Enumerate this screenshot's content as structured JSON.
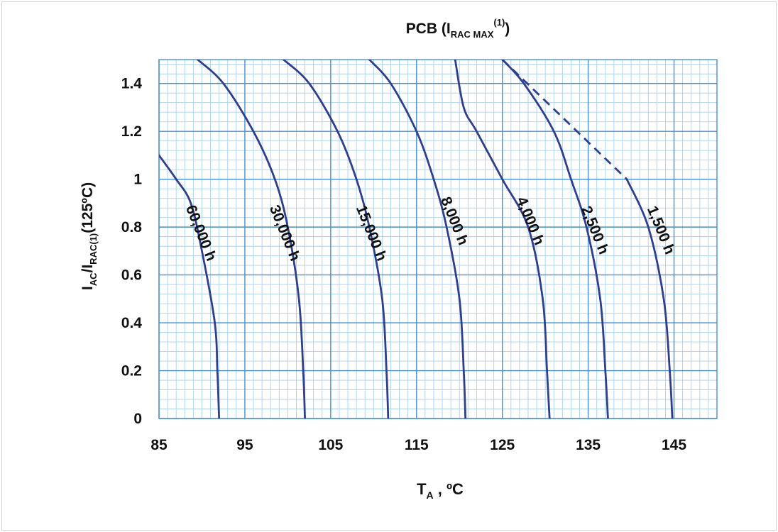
{
  "chart_data": {
    "type": "line",
    "title": {
      "main": "PCB (I",
      "sub": "RAC MAX",
      "sup": "(1)",
      "close": ")"
    },
    "xlabel": {
      "main": "T",
      "sub": "A",
      "rest": " , ºC"
    },
    "ylabel": {
      "p1": "I",
      "s1": "AC",
      "p2": "/I",
      "s2": "RAC(1)",
      "p3": "(125ºC)"
    },
    "xlim": [
      85,
      150
    ],
    "ylim": [
      0,
      1.5
    ],
    "x_ticks": [
      85,
      95,
      105,
      115,
      125,
      135,
      145
    ],
    "x_tick_labels": [
      "85",
      "95",
      "105",
      "115",
      "125",
      "135",
      "145"
    ],
    "y_ticks": [
      0,
      0.2,
      0.4,
      0.6,
      0.8,
      1,
      1.2,
      1.4
    ],
    "y_tick_labels": [
      "0",
      "0.2",
      "0.4",
      "0.6",
      "0.8",
      "1",
      "1.2",
      "1.4"
    ],
    "grid": "major and minor",
    "colors": {
      "curve": "#2e3f92",
      "grid_major": "#4a90d4",
      "grid_minor": "#a9d1f0"
    },
    "series": [
      {
        "label": "60,000 h",
        "points": [
          [
            92.0,
            0
          ],
          [
            91.8,
            0.2
          ],
          [
            91.5,
            0.4
          ],
          [
            90.0,
            0.7
          ],
          [
            88.7,
            0.9
          ],
          [
            87.0,
            1.0
          ],
          [
            85.0,
            1.1
          ]
        ]
      },
      {
        "label": "30,000 h",
        "points": [
          [
            102.0,
            0
          ],
          [
            101.8,
            0.2
          ],
          [
            101.3,
            0.5
          ],
          [
            100.0,
            0.8
          ],
          [
            98.5,
            1.0
          ],
          [
            96.0,
            1.2
          ],
          [
            92.5,
            1.4
          ],
          [
            89.5,
            1.5
          ]
        ]
      },
      {
        "label": "15,000 h",
        "points": [
          [
            111.7,
            0
          ],
          [
            111.5,
            0.2
          ],
          [
            111.0,
            0.5
          ],
          [
            109.5,
            0.8
          ],
          [
            108.0,
            1.0
          ],
          [
            105.8,
            1.2
          ],
          [
            102.5,
            1.4
          ],
          [
            99.5,
            1.5
          ]
        ]
      },
      {
        "label": "8,000 h",
        "points": [
          [
            120.7,
            0
          ],
          [
            120.5,
            0.2
          ],
          [
            120.0,
            0.5
          ],
          [
            118.5,
            0.8
          ],
          [
            117.0,
            1.0
          ],
          [
            115.0,
            1.2
          ],
          [
            112.0,
            1.4
          ],
          [
            109.5,
            1.5
          ]
        ]
      },
      {
        "label": "4,000 h",
        "points": [
          [
            130.5,
            0
          ],
          [
            130.2,
            0.2
          ],
          [
            129.7,
            0.5
          ],
          [
            128.0,
            0.8
          ],
          [
            125.0,
            1.0
          ],
          [
            122.0,
            1.2
          ],
          [
            120.5,
            1.3
          ],
          [
            119.5,
            1.5
          ]
        ]
      },
      {
        "label": "2,500 h",
        "points": [
          [
            137.3,
            0
          ],
          [
            137.0,
            0.2
          ],
          [
            136.4,
            0.5
          ],
          [
            134.8,
            0.8
          ],
          [
            133.0,
            1.0
          ],
          [
            131.0,
            1.2
          ],
          [
            127.5,
            1.4
          ],
          [
            125.0,
            1.5
          ]
        ]
      },
      {
        "label": "1,500 h",
        "points": [
          [
            144.8,
            0
          ],
          [
            144.5,
            0.2
          ],
          [
            143.8,
            0.5
          ],
          [
            142.0,
            0.8
          ],
          [
            139.5,
            1.0
          ]
        ]
      }
    ],
    "dashed_line": {
      "points": [
        [
          125.0,
          1.5
        ],
        [
          139.5,
          1.0
        ]
      ]
    }
  }
}
